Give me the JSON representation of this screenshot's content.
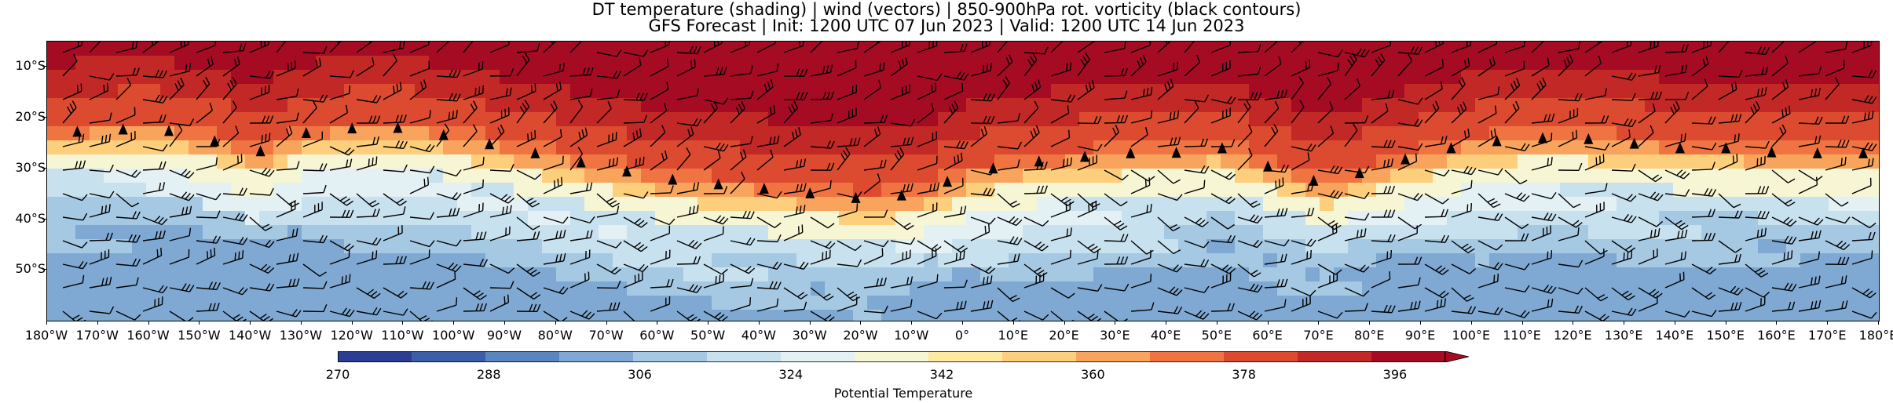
{
  "title": {
    "line1": "DT temperature (shading) | wind (vectors) | 850-900hPa rot. vorticity (black contours)",
    "line2": "GFS Forecast | Init: 1200 UTC 07 Jun 2023 | Valid: 1200 UTC 14 Jun 2023"
  },
  "map": {
    "lat_labels": [
      "10°S",
      "20°S",
      "30°S",
      "40°S",
      "50°S"
    ],
    "lon_labels": [
      "180°W",
      "170°W",
      "160°W",
      "150°W",
      "140°W",
      "130°W",
      "120°W",
      "110°W",
      "100°W",
      "90°W",
      "80°W",
      "70°W",
      "60°W",
      "50°W",
      "40°W",
      "30°W",
      "20°W",
      "10°W",
      "0°",
      "10°E",
      "20°E",
      "30°E",
      "40°E",
      "50°E",
      "60°E",
      "70°E",
      "80°E",
      "90°E",
      "100°E",
      "110°E",
      "120°E",
      "130°E",
      "140°E",
      "150°E",
      "160°E",
      "170°E",
      "180°E"
    ],
    "lat_range": [
      -5,
      -60
    ],
    "lon_range": [
      -180,
      180
    ],
    "tropopause_boundary_lat": [
      [
        -180,
        -26
      ],
      [
        -160,
        -25
      ],
      [
        -150,
        -27
      ],
      [
        -140,
        -30
      ],
      [
        -130,
        -26
      ],
      [
        -120,
        -25
      ],
      [
        -110,
        -25
      ],
      [
        -100,
        -27
      ],
      [
        -90,
        -29
      ],
      [
        -80,
        -31
      ],
      [
        -70,
        -33
      ],
      [
        -60,
        -35
      ],
      [
        -50,
        -36
      ],
      [
        -40,
        -37
      ],
      [
        -30,
        -38
      ],
      [
        -20,
        -39
      ],
      [
        -10,
        -38
      ],
      [
        0,
        -34
      ],
      [
        10,
        -32
      ],
      [
        20,
        -31
      ],
      [
        30,
        -30
      ],
      [
        40,
        -30
      ],
      [
        50,
        -29
      ],
      [
        60,
        -33
      ],
      [
        70,
        -36
      ],
      [
        80,
        -33
      ],
      [
        90,
        -30
      ],
      [
        100,
        -28
      ],
      [
        110,
        -27
      ],
      [
        120,
        -27
      ],
      [
        130,
        -28
      ],
      [
        140,
        -29
      ],
      [
        150,
        -29
      ],
      [
        160,
        -30
      ],
      [
        170,
        -30
      ],
      [
        180,
        -30
      ]
    ]
  },
  "colorbar": {
    "label": "Potential Temperature",
    "ticks": [
      "270",
      "288",
      "306",
      "324",
      "342",
      "360",
      "378",
      "396"
    ],
    "min": 270,
    "max": 402,
    "colors": [
      "#2c3e94",
      "#3c5ea8",
      "#5a86c0",
      "#7fa9d2",
      "#a6c9e3",
      "#c8e1ef",
      "#e3f0f4",
      "#f6f6d4",
      "#fde9a0",
      "#fdce7c",
      "#f8a45c",
      "#ef7442",
      "#dc4a30",
      "#c22826",
      "#a50b23"
    ]
  }
}
